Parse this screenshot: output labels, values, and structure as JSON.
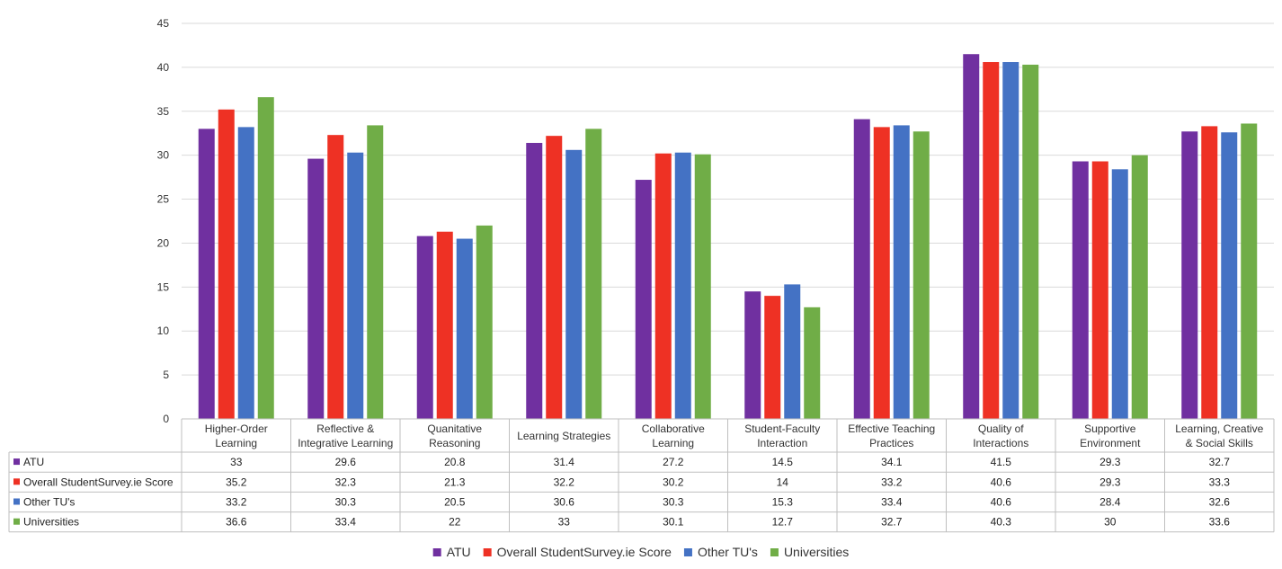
{
  "chart_data": {
    "type": "bar",
    "categories": [
      "Higher-Order Learning",
      "Reflective & Integrative Learning",
      "Quanitative Reasoning",
      "Learning Strategies",
      "Collaborative Learning",
      "Student-Faculty Interaction",
      "Effective Teaching Practices",
      "Quality of Interactions",
      "Supportive Environment",
      "Learning, Creative & Social Skills"
    ],
    "series": [
      {
        "name": "ATU",
        "color": "#7030A0",
        "values": [
          33,
          29.6,
          20.8,
          31.4,
          27.2,
          14.5,
          34.1,
          41.5,
          29.3,
          32.7
        ]
      },
      {
        "name": "Overall StudentSurvey.ie Score",
        "color": "#EE3124",
        "values": [
          35.2,
          32.3,
          21.3,
          32.2,
          30.2,
          14,
          33.2,
          40.6,
          29.3,
          33.3
        ]
      },
      {
        "name": "Other TU's",
        "color": "#4472C4",
        "values": [
          33.2,
          30.3,
          20.5,
          30.6,
          30.3,
          15.3,
          33.4,
          40.6,
          28.4,
          32.6
        ]
      },
      {
        "name": "Universities",
        "color": "#70AD47",
        "values": [
          36.6,
          33.4,
          22,
          33,
          30.1,
          12.7,
          32.7,
          40.3,
          30,
          33.6
        ]
      }
    ],
    "ylim": [
      0,
      45
    ],
    "yticks": [
      0,
      5,
      10,
      15,
      20,
      25,
      30,
      35,
      40,
      45
    ],
    "grid": true,
    "legend": "bottom",
    "data_table": true
  }
}
